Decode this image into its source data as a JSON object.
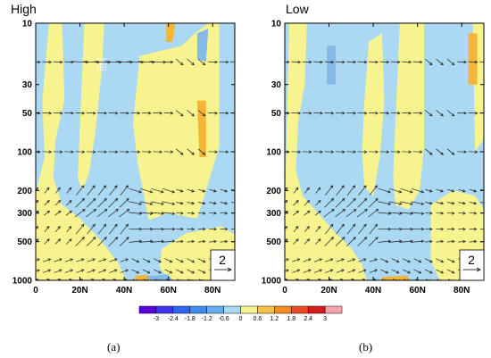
{
  "chart_data": [
    {
      "type": "heatmap",
      "panel_label": "(a)",
      "title": "High",
      "x_ticks": [
        "0",
        "20N",
        "40N",
        "60N",
        "80N"
      ],
      "x_tick_values": [
        0,
        20,
        40,
        60,
        80
      ],
      "xlim": [
        0,
        90
      ],
      "y_ticks": [
        "10",
        "30",
        "50",
        "100",
        "200",
        "300",
        "500",
        "1000"
      ],
      "y_tick_values": [
        10,
        30,
        50,
        100,
        200,
        300,
        500,
        1000
      ],
      "ylim": [
        1000,
        10
      ],
      "y_scale": "log",
      "reference_vector": "2",
      "shading_regions": [
        {
          "color": "#f7f38e",
          "points": [
            [
              6,
              10
            ],
            [
              12,
              10
            ],
            [
              13,
              40
            ],
            [
              9,
              80
            ],
            [
              8,
              160
            ],
            [
              12,
              260
            ],
            [
              20,
              330
            ],
            [
              29,
              480
            ],
            [
              37,
              720
            ],
            [
              41,
              1000
            ],
            [
              0,
              1000
            ],
            [
              0,
              210
            ],
            [
              4,
              110
            ],
            [
              3,
              40
            ]
          ]
        },
        {
          "color": "#f7f38e",
          "points": [
            [
              22,
              10
            ],
            [
              31,
              10
            ],
            [
              30,
              22
            ],
            [
              27,
              70
            ],
            [
              24,
              150
            ],
            [
              21,
              200
            ],
            [
              19,
              160
            ],
            [
              20,
              60
            ]
          ]
        },
        {
          "color": "#f7f38e",
          "points": [
            [
              47,
              18
            ],
            [
              66,
              15
            ],
            [
              72,
              12
            ],
            [
              78,
              10
            ],
            [
              83,
              10
            ],
            [
              83,
              90
            ],
            [
              77,
              200
            ],
            [
              73,
              330
            ],
            [
              60,
              300
            ],
            [
              51,
              340
            ],
            [
              49,
              220
            ],
            [
              46,
              120
            ],
            [
              44,
              60
            ]
          ]
        },
        {
          "color": "#f7f38e",
          "points": [
            [
              57,
              570
            ],
            [
              68,
              430
            ],
            [
              84,
              380
            ],
            [
              90,
              440
            ],
            [
              90,
              1000
            ],
            [
              61,
              1000
            ],
            [
              56,
              800
            ]
          ]
        },
        {
          "color": "#f6b535",
          "points": [
            [
              59,
              10
            ],
            [
              63,
              10
            ],
            [
              62,
              14
            ],
            [
              59,
              14
            ]
          ]
        },
        {
          "color": "#f6b535",
          "points": [
            [
              73,
              40
            ],
            [
              77,
              40
            ],
            [
              77,
              110
            ],
            [
              74,
              110
            ]
          ]
        },
        {
          "color": "#f6b535",
          "points": [
            [
              45,
              920
            ],
            [
              51,
              910
            ],
            [
              53,
              1000
            ],
            [
              45,
              1000
            ]
          ]
        },
        {
          "color": "#84b9ea",
          "points": [
            [
              73,
              12
            ],
            [
              78,
              11
            ],
            [
              77,
              20
            ],
            [
              73,
              19
            ]
          ]
        },
        {
          "color": "#84b9ea",
          "points": [
            [
              50,
              930
            ],
            [
              60,
              900
            ],
            [
              62,
              1000
            ],
            [
              52,
              1000
            ]
          ]
        }
      ],
      "stipple_regions": [
        {
          "points": [
            [
              28,
              19
            ],
            [
              32,
              19
            ],
            [
              32,
              24
            ],
            [
              28,
              24
            ]
          ]
        }
      ],
      "vector_field": {
        "levels": [
          20,
          50,
          100,
          200,
          250,
          300,
          400,
          500,
          700,
          850,
          1000
        ],
        "lats": [
          0,
          5,
          10,
          15,
          20,
          25,
          30,
          35,
          40,
          45,
          50,
          55,
          60,
          65,
          70,
          75,
          80,
          85,
          90
        ]
      }
    },
    {
      "type": "heatmap",
      "panel_label": "(b)",
      "title": "Low",
      "x_ticks": [
        "0",
        "20N",
        "40N",
        "60N",
        "80N"
      ],
      "x_tick_values": [
        0,
        20,
        40,
        60,
        80
      ],
      "xlim": [
        0,
        90
      ],
      "y_ticks": [
        "10",
        "30",
        "50",
        "100",
        "200",
        "300",
        "500",
        "1000"
      ],
      "y_tick_values": [
        10,
        30,
        50,
        100,
        200,
        300,
        500,
        1000
      ],
      "ylim": [
        1000,
        10
      ],
      "y_scale": "log",
      "reference_vector": "2",
      "shading_regions": [
        {
          "color": "#f7f38e",
          "points": [
            [
              2,
              10
            ],
            [
              10,
              10
            ],
            [
              9,
              30
            ],
            [
              6,
              60
            ],
            [
              5,
              140
            ],
            [
              8,
              220
            ],
            [
              15,
              300
            ],
            [
              23,
              430
            ],
            [
              30,
              560
            ],
            [
              35,
              760
            ],
            [
              37,
              1000
            ],
            [
              0,
              1000
            ],
            [
              0,
              300
            ]
          ]
        },
        {
          "color": "#f7f38e",
          "points": [
            [
              38,
              14
            ],
            [
              44,
              12
            ],
            [
              45,
              40
            ],
            [
              43,
              110
            ],
            [
              40,
              220
            ],
            [
              36,
              190
            ],
            [
              35,
              100
            ],
            [
              36,
              40
            ]
          ]
        },
        {
          "color": "#f7f38e",
          "points": [
            [
              52,
              10
            ],
            [
              63,
              10
            ],
            [
              63,
              90
            ],
            [
              61,
              200
            ],
            [
              56,
              280
            ],
            [
              50,
              260
            ],
            [
              49,
              160
            ],
            [
              50,
              60
            ]
          ]
        },
        {
          "color": "#f7f38e",
          "points": [
            [
              66,
              260
            ],
            [
              76,
              200
            ],
            [
              86,
              220
            ],
            [
              90,
              280
            ],
            [
              90,
              1000
            ],
            [
              70,
              1000
            ],
            [
              66,
              700
            ]
          ]
        },
        {
          "color": "#f7f38e",
          "points": [
            [
              85,
              10
            ],
            [
              90,
              10
            ],
            [
              90,
              80
            ],
            [
              86,
              100
            ]
          ]
        },
        {
          "color": "#f6b535",
          "points": [
            [
              83,
              12
            ],
            [
              87,
              12
            ],
            [
              87,
              30
            ],
            [
              83,
              30
            ]
          ]
        },
        {
          "color": "#f6b535",
          "points": [
            [
              44,
              940
            ],
            [
              55,
              920
            ],
            [
              57,
              1000
            ],
            [
              44,
              1000
            ]
          ]
        },
        {
          "color": "#84b9ea",
          "points": [
            [
              19,
              15
            ],
            [
              23,
              15
            ],
            [
              23,
              30
            ],
            [
              19,
              30
            ]
          ]
        }
      ],
      "stipple_regions": [],
      "vector_field": {
        "levels": [
          20,
          50,
          100,
          200,
          250,
          300,
          400,
          500,
          700,
          850,
          1000
        ],
        "lats": [
          0,
          5,
          10,
          15,
          20,
          25,
          30,
          35,
          40,
          45,
          50,
          55,
          60,
          65,
          70,
          75,
          80,
          85,
          90
        ]
      }
    }
  ],
  "colorbar": {
    "background_color": "#abd8f3",
    "labels": [
      "-3",
      "-2.4",
      "-1.8",
      "-1.2",
      "-0.6",
      "0",
      "0.6",
      "1.2",
      "1.8",
      "2.4",
      "3"
    ],
    "colors": [
      "#5a00d8",
      "#3d33f0",
      "#2f64f2",
      "#3b8df2",
      "#63aef2",
      "#a7daf6",
      "#f5f390",
      "#f6c344",
      "#f48c22",
      "#ef4a21",
      "#d31c1c",
      "#f7a3ab"
    ]
  }
}
